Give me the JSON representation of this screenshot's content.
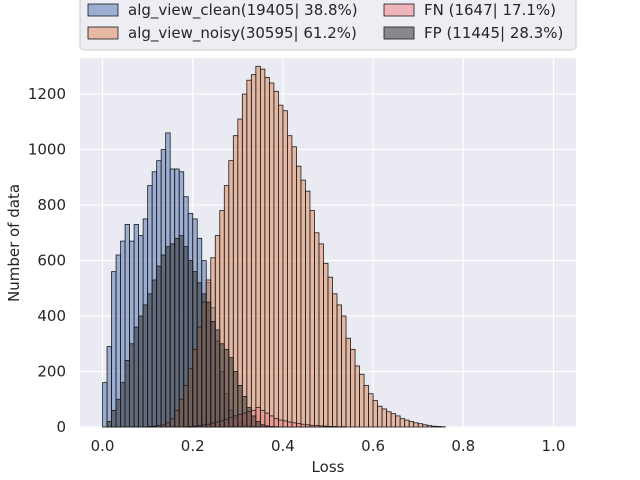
{
  "chart_data": {
    "type": "bar",
    "title": "",
    "xlabel": "Loss",
    "ylabel": "Number of data",
    "xlim": [
      -0.05,
      1.05
    ],
    "ylim": [
      0,
      1330
    ],
    "xticks": [
      "0.0",
      "0.2",
      "0.4",
      "0.6",
      "0.8",
      "1.0"
    ],
    "yticks": [
      "0",
      "200",
      "400",
      "600",
      "800",
      "1000",
      "1200"
    ],
    "grid": true,
    "legend_position": "top-center",
    "bin_width": 0.01,
    "series": [
      {
        "name": "alg_view_clean(19405| 38.8%)",
        "color": "#4c72b0",
        "bin_start": 0.0,
        "values": [
          160,
          290,
          560,
          620,
          670,
          730,
          670,
          730,
          690,
          750,
          870,
          920,
          960,
          1000,
          1060,
          930,
          930,
          920,
          830,
          770,
          750,
          680,
          600,
          520,
          430,
          310,
          200,
          120,
          60,
          30,
          15,
          8,
          4,
          2,
          1
        ]
      },
      {
        "name": "alg_view_noisy(30595| 61.2%)",
        "color": "#dd8452",
        "bin_start": 0.0,
        "values": [
          0,
          0,
          0,
          0,
          0,
          0,
          0,
          0,
          0,
          0,
          2,
          3,
          5,
          8,
          15,
          30,
          60,
          100,
          150,
          210,
          280,
          360,
          450,
          530,
          610,
          690,
          780,
          870,
          960,
          1050,
          1110,
          1200,
          1250,
          1270,
          1300,
          1290,
          1260,
          1240,
          1210,
          1160,
          1140,
          1050,
          1010,
          940,
          890,
          850,
          780,
          700,
          660,
          590,
          540,
          480,
          440,
          400,
          320,
          280,
          220,
          190,
          150,
          120,
          95,
          75,
          65,
          55,
          48,
          40,
          30,
          25,
          20,
          15,
          12,
          8,
          5,
          3,
          2,
          1
        ]
      },
      {
        "name": "FN (1647| 17.1%)",
        "color": "#f08080",
        "bin_start": 0.0,
        "values": [
          0,
          0,
          0,
          0,
          0,
          0,
          0,
          0,
          0,
          0,
          0,
          0,
          0,
          0,
          0,
          0,
          0,
          0,
          1,
          2,
          3,
          5,
          8,
          10,
          14,
          18,
          22,
          28,
          34,
          40,
          45,
          50,
          55,
          60,
          70,
          60,
          50,
          40,
          30,
          25,
          22,
          18,
          15,
          12,
          10,
          8,
          6,
          5,
          4,
          3,
          2,
          2,
          1,
          1
        ]
      },
      {
        "name": "FP (11445| 28.3%)",
        "color": "#262626",
        "bin_start": 0.0,
        "values": [
          0,
          20,
          60,
          100,
          160,
          240,
          300,
          360,
          400,
          440,
          480,
          530,
          580,
          620,
          650,
          660,
          680,
          690,
          650,
          600,
          560,
          520,
          480,
          450,
          380,
          350,
          300,
          280,
          250,
          200,
          150,
          110,
          70,
          40,
          20,
          8,
          4,
          2,
          1
        ]
      }
    ]
  }
}
